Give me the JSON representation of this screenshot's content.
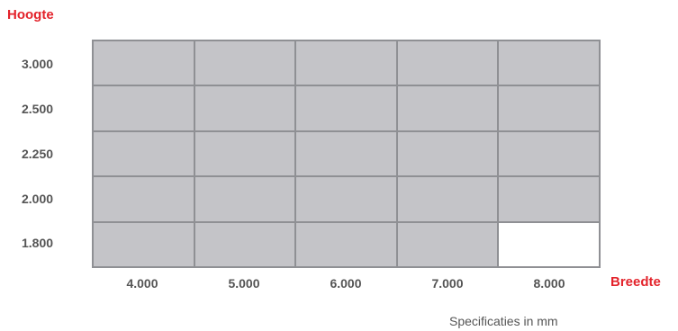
{
  "axes": {
    "y_title": "Hoogte",
    "x_title": "Breedte"
  },
  "heights": [
    "3.000",
    "2.500",
    "2.250",
    "2.000",
    "1.800"
  ],
  "widths": [
    "4.000",
    "5.000",
    "6.000",
    "7.000",
    "8.000"
  ],
  "availability": [
    [
      true,
      true,
      true,
      true,
      true
    ],
    [
      true,
      true,
      true,
      true,
      true
    ],
    [
      true,
      true,
      true,
      true,
      true
    ],
    [
      true,
      true,
      true,
      true,
      true
    ],
    [
      true,
      true,
      true,
      true,
      false
    ]
  ],
  "colors": {
    "available": "#c4c4c8",
    "unavailable": "#ffffff",
    "grid_line": "#8f9094",
    "accent": "#e3232b"
  },
  "footnote": "Specificaties in mm"
}
